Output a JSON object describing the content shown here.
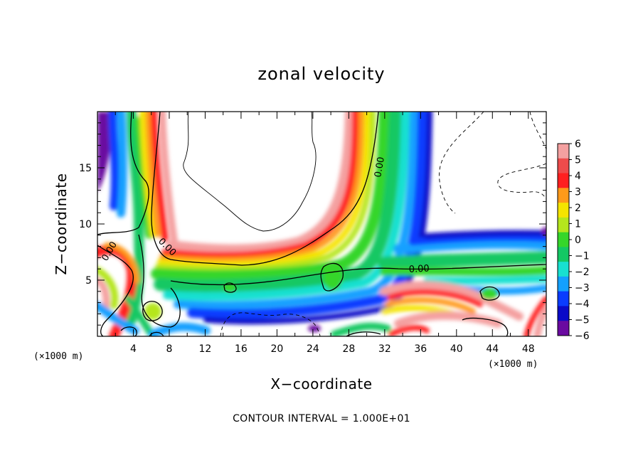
{
  "chart_data": {
    "type": "heatmap",
    "title": "zonal velocity",
    "xlabel": "X−coordinate",
    "ylabel": "Z−coordinate",
    "x_unit": "(×1000 m)",
    "y_unit": "(×1000 m)",
    "xlim": [
      0,
      50
    ],
    "ylim": [
      0,
      20
    ],
    "x_ticks": [
      4,
      8,
      12,
      16,
      20,
      24,
      28,
      32,
      36,
      40,
      44,
      48
    ],
    "x_tick_labels": [
      "4",
      "8",
      "12",
      "16",
      "20",
      "24",
      "28",
      "32",
      "36",
      "40",
      "44",
      "48"
    ],
    "y_ticks": [
      5,
      10,
      15
    ],
    "y_tick_labels": [
      "5",
      "10",
      "15"
    ],
    "colorbar": {
      "min": -6,
      "max": 6,
      "ticks": [
        "6",
        "5",
        "4",
        "3",
        "2",
        "1",
        "0",
        "−1",
        "−2",
        "−3",
        "−4",
        "−5",
        "−6"
      ],
      "colors": [
        "#f4a0a0",
        "#ee4b4b",
        "#ff2020",
        "#ff9a1a",
        "#f5e400",
        "#b5e61d",
        "#35d62a",
        "#14c864",
        "#18e0d0",
        "#14a0ff",
        "#0a3cff",
        "#0a0ac8",
        "#6a0aa0"
      ]
    },
    "contour_labels": [
      "0.00",
      "0.00",
      "0.00",
      "0.00"
    ],
    "annotation": "CONTOUR INTERVAL = 1.000E+01"
  }
}
